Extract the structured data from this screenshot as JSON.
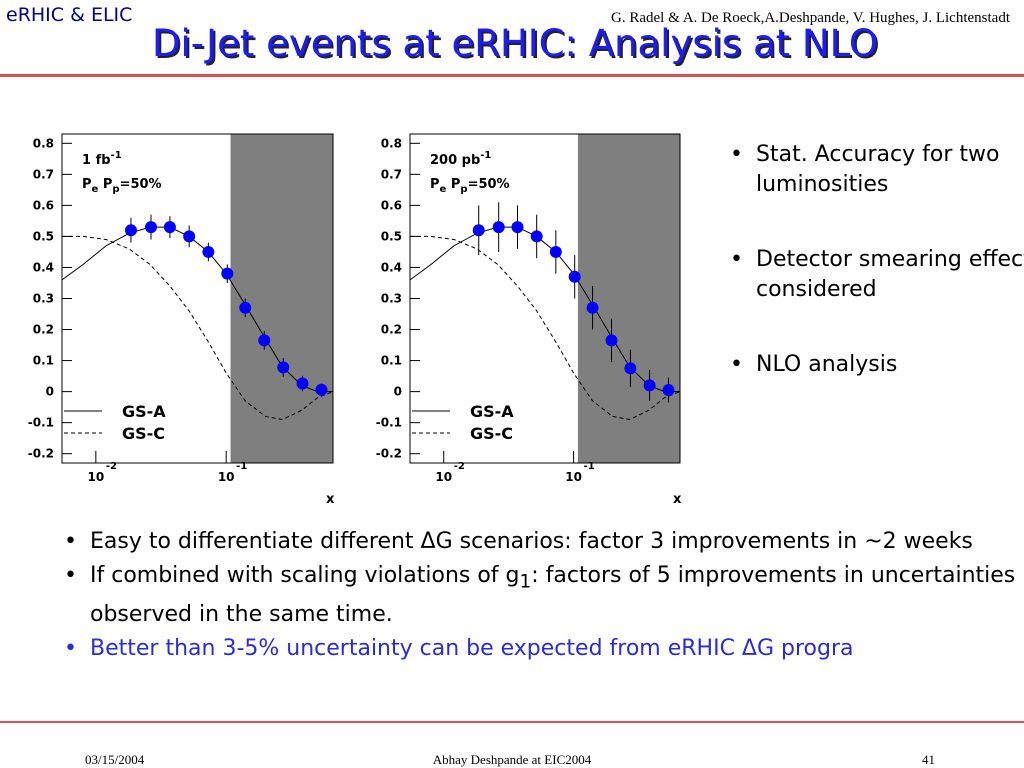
{
  "header": {
    "tag": "eRHIC & ELIC",
    "authors": "G. Radel & A. De Roeck,A.Deshpande, V. Hughes, J. Lichtenstadt",
    "title": "Di-Jet events at eRHIC: Analysis at NLO"
  },
  "chart_data": [
    {
      "type": "scatter",
      "luminosity": {
        "text": "1 fb",
        "sup": "-1"
      },
      "polarization": [
        "P",
        "e",
        " P",
        "p",
        "=50%"
      ],
      "xlabel": "x",
      "log_x": true,
      "xlim": [
        0.0055,
        0.66
      ],
      "ylim": [
        -0.23,
        0.83
      ],
      "xticks": [
        {
          "value": 0.01,
          "label": "10",
          "sup": "-2"
        },
        {
          "value": 0.1,
          "label": "10",
          "sup": "-1"
        }
      ],
      "yticks": [
        0.8,
        0.7,
        0.6,
        0.5,
        0.4,
        0.3,
        0.2,
        0.1,
        0,
        -0.1,
        -0.2
      ],
      "shaded_x": [
        0.108,
        0.66
      ],
      "shade_color": "#7f7f7f",
      "legend": "lower left",
      "series": [
        {
          "name": "GS-A",
          "style": "solid",
          "color": "#000000",
          "x": [
            0.0055,
            0.008,
            0.012,
            0.018,
            0.026,
            0.037,
            0.052,
            0.073,
            0.1,
            0.14,
            0.2,
            0.27,
            0.38,
            0.5,
            0.66
          ],
          "values": [
            0.36,
            0.41,
            0.47,
            0.51,
            0.53,
            0.53,
            0.5,
            0.45,
            0.38,
            0.28,
            0.17,
            0.08,
            0.02,
            0.0,
            0.0
          ]
        },
        {
          "name": "GS-C",
          "style": "dashed",
          "color": "#000000",
          "x": [
            0.0055,
            0.008,
            0.012,
            0.018,
            0.026,
            0.037,
            0.052,
            0.073,
            0.1,
            0.14,
            0.2,
            0.27,
            0.38,
            0.5,
            0.66
          ],
          "values": [
            0.5,
            0.5,
            0.49,
            0.46,
            0.41,
            0.34,
            0.26,
            0.16,
            0.06,
            -0.03,
            -0.08,
            -0.09,
            -0.06,
            -0.02,
            0.0
          ]
        }
      ],
      "points": {
        "color": "#0000ff",
        "x": [
          0.0186,
          0.0265,
          0.037,
          0.052,
          0.073,
          0.102,
          0.14,
          0.196,
          0.274,
          0.385,
          0.538
        ],
        "values": [
          0.52,
          0.53,
          0.53,
          0.5,
          0.45,
          0.38,
          0.27,
          0.165,
          0.078,
          0.026,
          0.006
        ],
        "errors": [
          0.04,
          0.04,
          0.035,
          0.035,
          0.03,
          0.03,
          0.03,
          0.03,
          0.03,
          0.025,
          0.02
        ]
      }
    },
    {
      "type": "scatter",
      "luminosity": {
        "text": "200 pb",
        "sup": "-1"
      },
      "polarization": [
        "P",
        "e",
        " P",
        "p",
        "=50%"
      ],
      "xlabel": "x",
      "log_x": true,
      "xlim": [
        0.0055,
        0.66
      ],
      "ylim": [
        -0.23,
        0.83
      ],
      "xticks": [
        {
          "value": 0.01,
          "label": "10",
          "sup": "-2"
        },
        {
          "value": 0.1,
          "label": "10",
          "sup": "-1"
        }
      ],
      "yticks": [
        0.8,
        0.7,
        0.6,
        0.5,
        0.4,
        0.3,
        0.2,
        0.1,
        0,
        -0.1,
        -0.2
      ],
      "shaded_x": [
        0.108,
        0.66
      ],
      "shade_color": "#7f7f7f",
      "legend": "lower left",
      "series": [
        {
          "name": "GS-A",
          "style": "solid",
          "color": "#000000",
          "x": [
            0.0055,
            0.008,
            0.012,
            0.018,
            0.026,
            0.037,
            0.052,
            0.073,
            0.1,
            0.14,
            0.2,
            0.27,
            0.38,
            0.5,
            0.66
          ],
          "values": [
            0.36,
            0.41,
            0.47,
            0.51,
            0.53,
            0.53,
            0.5,
            0.45,
            0.38,
            0.28,
            0.17,
            0.08,
            0.02,
            0.0,
            0.0
          ]
        },
        {
          "name": "GS-C",
          "style": "dashed",
          "color": "#000000",
          "x": [
            0.0055,
            0.008,
            0.012,
            0.018,
            0.026,
            0.037,
            0.052,
            0.073,
            0.1,
            0.14,
            0.2,
            0.27,
            0.38,
            0.5,
            0.66
          ],
          "values": [
            0.5,
            0.5,
            0.49,
            0.46,
            0.41,
            0.34,
            0.26,
            0.16,
            0.06,
            -0.03,
            -0.08,
            -0.09,
            -0.06,
            -0.02,
            0.0
          ]
        }
      ],
      "points": {
        "color": "#0000ff",
        "x": [
          0.0186,
          0.0265,
          0.037,
          0.052,
          0.073,
          0.102,
          0.14,
          0.196,
          0.274,
          0.385,
          0.538
        ],
        "values": [
          0.52,
          0.53,
          0.53,
          0.5,
          0.45,
          0.37,
          0.27,
          0.165,
          0.075,
          0.02,
          0.005
        ],
        "errors": [
          0.08,
          0.08,
          0.07,
          0.07,
          0.07,
          0.07,
          0.07,
          0.07,
          0.06,
          0.05,
          0.04
        ]
      }
    }
  ],
  "side_bullets": [
    "Stat. Accuracy for two luminosities",
    "Detector smearing effects considered",
    "NLO analysis"
  ],
  "bullets": [
    {
      "text": "Easy to differentiate different ΔG scenarios: factor 3 improvements in ~2 weeks"
    },
    {
      "text": "If combined with scaling violations of g",
      "sub": "1",
      "rest": ": factors of 5 improvements in uncertainties observed in the same time."
    },
    {
      "text": "Better than 3-5% uncertainty can be expected from eRHIC ΔG progra",
      "color": "#2b2bd6"
    }
  ],
  "footer": {
    "date": "03/15/2004",
    "center": "Abhay Deshpande at EIC2004",
    "page": "41"
  }
}
